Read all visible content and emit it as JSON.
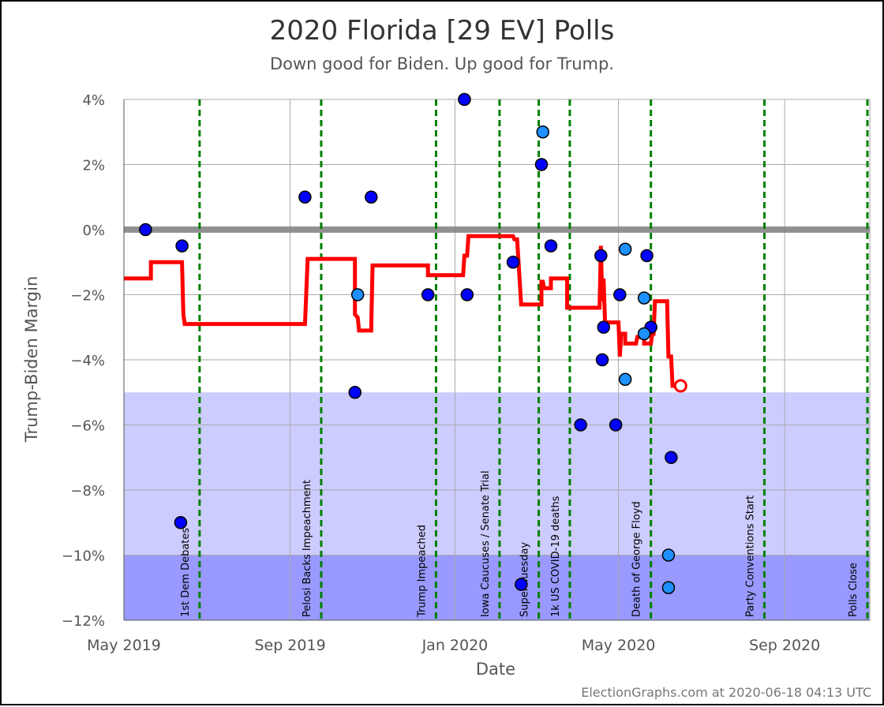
{
  "chart_data": {
    "type": "scatter",
    "title": "2020 Florida [29 EV] Polls",
    "subtitle": "Down good for Biden. Up good for Trump.",
    "xlabel": "Date",
    "ylabel": "Trump-Biden Margin",
    "footer": "ElectionGraphs.com at 2020-06-18 04:13 UTC",
    "xlim": [
      "2019-05-01",
      "2020-11-03"
    ],
    "ylim": [
      -12,
      4
    ],
    "x_ticks": [
      {
        "date": "2019-05-01",
        "label": "May 2019"
      },
      {
        "date": "2019-09-01",
        "label": "Sep 2019"
      },
      {
        "date": "2020-01-01",
        "label": "Jan 2020"
      },
      {
        "date": "2020-05-01",
        "label": "May 2020"
      },
      {
        "date": "2020-09-01",
        "label": "Sep 2020"
      }
    ],
    "y_ticks": [
      {
        "value": 4,
        "label": "4%"
      },
      {
        "value": 2,
        "label": "2%"
      },
      {
        "value": 0,
        "label": "0%"
      },
      {
        "value": -2,
        "label": "−2%"
      },
      {
        "value": -4,
        "label": "−4%"
      },
      {
        "value": -6,
        "label": "−6%"
      },
      {
        "value": -8,
        "label": "−8%"
      },
      {
        "value": -10,
        "label": "−10%"
      },
      {
        "value": -12,
        "label": "−12%"
      }
    ],
    "grid": true,
    "bands": [
      {
        "from": -10,
        "to": -5,
        "color": "#ccccff"
      },
      {
        "from": -12,
        "to": -10,
        "color": "#9999ff"
      }
    ],
    "zero_line_color": "#808080",
    "events": [
      {
        "date": "2019-06-26",
        "label": "1st Dem Debates"
      },
      {
        "date": "2019-09-24",
        "label": "Pelosi Backs Impeachment"
      },
      {
        "date": "2019-12-18",
        "label": "Trump Impeached"
      },
      {
        "date": "2020-02-03",
        "label": "Iowa Caucuses / Senate Trial"
      },
      {
        "date": "2020-03-03",
        "label": "Super Tuesday"
      },
      {
        "date": "2020-03-26",
        "label": "1k US COVID-19 deaths"
      },
      {
        "date": "2020-05-25",
        "label": "Death of George Floyd"
      },
      {
        "date": "2020-08-17",
        "label": "Party Conventions Start"
      },
      {
        "date": "2020-11-03",
        "label": "Polls Close"
      }
    ],
    "event_line_color": "#008000",
    "series": [
      {
        "type": "scatter",
        "color": "#0000ff",
        "points": [
          {
            "x": "2019-05-17",
            "y": 0
          },
          {
            "x": "2019-06-13",
            "y": -0.5
          },
          {
            "x": "2019-06-12",
            "y": -9
          },
          {
            "x": "2019-09-12",
            "y": 1
          },
          {
            "x": "2019-10-19",
            "y": -5
          },
          {
            "x": "2019-10-31",
            "y": 1
          },
          {
            "x": "2019-12-12",
            "y": -2
          },
          {
            "x": "2020-01-08",
            "y": 4
          },
          {
            "x": "2020-01-10",
            "y": -2
          },
          {
            "x": "2020-02-13",
            "y": -1
          },
          {
            "x": "2020-02-19",
            "y": -10.9
          },
          {
            "x": "2020-03-05",
            "y": 2
          },
          {
            "x": "2020-03-12",
            "y": -0.5
          },
          {
            "x": "2020-04-03",
            "y": -6
          },
          {
            "x": "2020-04-18",
            "y": -0.8
          },
          {
            "x": "2020-04-19",
            "y": -4
          },
          {
            "x": "2020-04-20",
            "y": -3
          },
          {
            "x": "2020-04-29",
            "y": -6
          },
          {
            "x": "2020-05-02",
            "y": -2
          },
          {
            "x": "2020-05-22",
            "y": -0.8
          },
          {
            "x": "2020-05-25",
            "y": -3
          },
          {
            "x": "2020-06-09",
            "y": -7
          }
        ]
      },
      {
        "type": "scatter",
        "color": "#1e90ff",
        "points": [
          {
            "x": "2019-10-21",
            "y": -2
          },
          {
            "x": "2020-03-06",
            "y": 3
          },
          {
            "x": "2020-05-06",
            "y": -0.6
          },
          {
            "x": "2020-05-06",
            "y": -4.6
          },
          {
            "x": "2020-05-20",
            "y": -2.1
          },
          {
            "x": "2020-05-20",
            "y": -3.2
          },
          {
            "x": "2020-06-07",
            "y": -10
          },
          {
            "x": "2020-06-07",
            "y": -11
          }
        ]
      },
      {
        "type": "line",
        "color": "#ff0000",
        "points": [
          {
            "x": "2019-05-01",
            "y": -1.5
          },
          {
            "x": "2019-05-21",
            "y": -1.5
          },
          {
            "x": "2019-05-21",
            "y": -1
          },
          {
            "x": "2019-06-13",
            "y": -1
          },
          {
            "x": "2019-06-14",
            "y": -2.6
          },
          {
            "x": "2019-06-15",
            "y": -2.9
          },
          {
            "x": "2019-09-12",
            "y": -2.9
          },
          {
            "x": "2019-09-14",
            "y": -0.9
          },
          {
            "x": "2019-10-19",
            "y": -0.9
          },
          {
            "x": "2019-10-19",
            "y": -2.6
          },
          {
            "x": "2019-10-21",
            "y": -2.7
          },
          {
            "x": "2019-10-22",
            "y": -3.1
          },
          {
            "x": "2019-10-31",
            "y": -3.1
          },
          {
            "x": "2019-11-01",
            "y": -1.1
          },
          {
            "x": "2019-12-12",
            "y": -1.1
          },
          {
            "x": "2019-12-12",
            "y": -1.4
          },
          {
            "x": "2020-01-07",
            "y": -1.4
          },
          {
            "x": "2020-01-08",
            "y": -0.8
          },
          {
            "x": "2020-01-10",
            "y": -0.8
          },
          {
            "x": "2020-01-11",
            "y": -0.2
          },
          {
            "x": "2020-02-13",
            "y": -0.2
          },
          {
            "x": "2020-02-14",
            "y": -0.3
          },
          {
            "x": "2020-02-16",
            "y": -0.3
          },
          {
            "x": "2020-02-19",
            "y": -2.3
          },
          {
            "x": "2020-03-05",
            "y": -2.3
          },
          {
            "x": "2020-03-05",
            "y": -1.6
          },
          {
            "x": "2020-03-06",
            "y": -1.6
          },
          {
            "x": "2020-03-07",
            "y": -1.8
          },
          {
            "x": "2020-03-12",
            "y": -1.8
          },
          {
            "x": "2020-03-12",
            "y": -1.5
          },
          {
            "x": "2020-03-24",
            "y": -1.5
          },
          {
            "x": "2020-03-24",
            "y": -2.4
          },
          {
            "x": "2020-04-03",
            "y": -2.4
          },
          {
            "x": "2020-04-03",
            "y": -2.4
          },
          {
            "x": "2020-04-17",
            "y": -2.4
          },
          {
            "x": "2020-04-18",
            "y": -0.5
          },
          {
            "x": "2020-04-19",
            "y": -2.2
          },
          {
            "x": "2020-04-20",
            "y": -1.5
          },
          {
            "x": "2020-04-21",
            "y": -2.8
          },
          {
            "x": "2020-04-22",
            "y": -2.85
          },
          {
            "x": "2020-05-01",
            "y": -2.85
          },
          {
            "x": "2020-05-02",
            "y": -3.9
          },
          {
            "x": "2020-05-03",
            "y": -3.2
          },
          {
            "x": "2020-05-06",
            "y": -3.2
          },
          {
            "x": "2020-05-06",
            "y": -3.5
          },
          {
            "x": "2020-05-14",
            "y": -3.5
          },
          {
            "x": "2020-05-15",
            "y": -3.3
          },
          {
            "x": "2020-05-20",
            "y": -3.3
          },
          {
            "x": "2020-05-20",
            "y": -3.5
          },
          {
            "x": "2020-05-25",
            "y": -3.5
          },
          {
            "x": "2020-05-26",
            "y": -3.2
          },
          {
            "x": "2020-05-27",
            "y": -3.2
          },
          {
            "x": "2020-05-28",
            "y": -2.2
          },
          {
            "x": "2020-06-06",
            "y": -2.2
          },
          {
            "x": "2020-06-07",
            "y": -3.9
          },
          {
            "x": "2020-06-09",
            "y": -3.9
          },
          {
            "x": "2020-06-10",
            "y": -4.8
          },
          {
            "x": "2020-06-16",
            "y": -4.8
          }
        ]
      }
    ],
    "current_value": {
      "x": "2020-06-16",
      "y": -4.8,
      "color": "#ff0000"
    }
  }
}
